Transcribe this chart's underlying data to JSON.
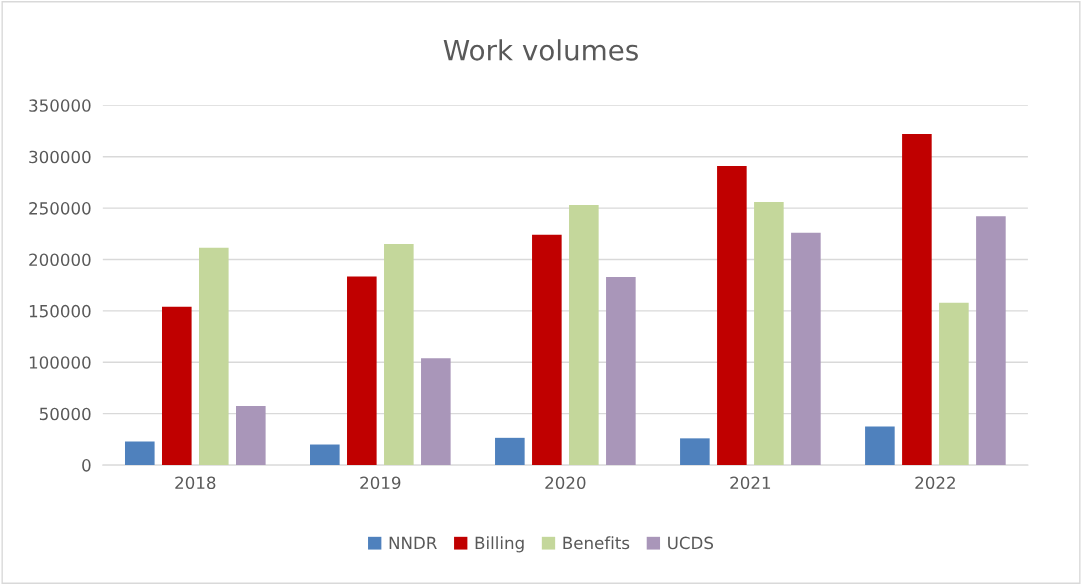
{
  "chart_data": {
    "type": "bar",
    "title": "Work volumes",
    "categories": [
      "2018",
      "2019",
      "2020",
      "2021",
      "2022"
    ],
    "series": [
      {
        "name": "NNDR",
        "color": "#4f81bd",
        "values": [
          23000,
          20000,
          26500,
          26000,
          37500
        ]
      },
      {
        "name": "Billing",
        "color": "#c00000",
        "values": [
          154000,
          183500,
          224000,
          291000,
          322000
        ]
      },
      {
        "name": "Benefits",
        "color": "#c4d79b",
        "values": [
          211500,
          215000,
          253000,
          256000,
          158000
        ]
      },
      {
        "name": "UCDS",
        "color": "#a996b9",
        "values": [
          57500,
          104000,
          183000,
          226000,
          242000
        ]
      }
    ],
    "ylim": [
      0,
      350000
    ],
    "yticks": [
      0,
      50000,
      100000,
      150000,
      200000,
      250000,
      300000,
      350000
    ],
    "grid": "y",
    "legend": "bottom"
  }
}
